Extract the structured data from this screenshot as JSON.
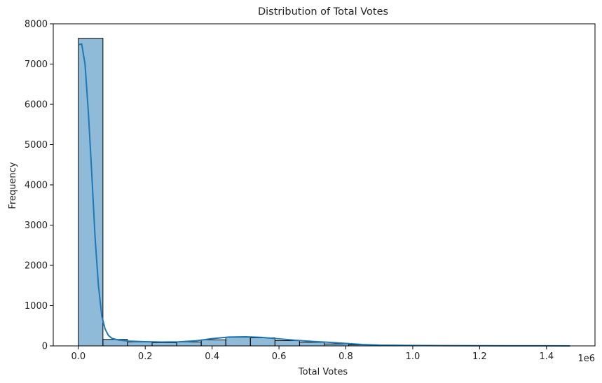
{
  "chart_data": {
    "type": "bar",
    "title": "Distribution of Total Votes",
    "xlabel": "Total Votes",
    "ylabel": "Frequency",
    "x_offset_label": "1e6",
    "xlim": [
      -0.075,
      1.545
    ],
    "ylim": [
      0,
      8000
    ],
    "xticks": [
      0.0,
      0.2,
      0.4,
      0.6,
      0.8,
      1.0,
      1.2,
      1.4
    ],
    "xtick_labels": [
      "0.0",
      "0.2",
      "0.4",
      "0.6",
      "0.8",
      "1.0",
      "1.2",
      "1.4"
    ],
    "yticks": [
      0,
      1000,
      2000,
      3000,
      4000,
      5000,
      6000,
      7000,
      8000
    ],
    "ytick_labels": [
      "0",
      "1000",
      "2000",
      "3000",
      "4000",
      "5000",
      "6000",
      "7000",
      "8000"
    ],
    "grid": false,
    "bin_width": 0.0735,
    "bin_starts": [
      0.0,
      0.0735,
      0.147,
      0.2205,
      0.294,
      0.3675,
      0.441,
      0.5145,
      0.588,
      0.6615,
      0.735,
      0.8085,
      0.882,
      0.9555,
      1.029,
      1.1025,
      1.176,
      1.2495,
      1.323,
      1.3965
    ],
    "values": [
      7640,
      160,
      100,
      80,
      100,
      150,
      215,
      200,
      130,
      90,
      50,
      25,
      15,
      10,
      8,
      6,
      4,
      3,
      2,
      2
    ],
    "kde": {
      "x": [
        0.0,
        0.01,
        0.02,
        0.03,
        0.04,
        0.05,
        0.06,
        0.07,
        0.08,
        0.09,
        0.1,
        0.12,
        0.15,
        0.2,
        0.25,
        0.3,
        0.35,
        0.4,
        0.45,
        0.5,
        0.55,
        0.6,
        0.65,
        0.7,
        0.75,
        0.8,
        0.85,
        0.9,
        1.0,
        1.1,
        1.2,
        1.3,
        1.4,
        1.47
      ],
      "y": [
        7480,
        7500,
        7000,
        5800,
        4300,
        2700,
        1500,
        750,
        420,
        260,
        190,
        145,
        120,
        105,
        95,
        100,
        125,
        180,
        220,
        225,
        210,
        175,
        140,
        110,
        90,
        60,
        35,
        20,
        10,
        6,
        4,
        3,
        2,
        1
      ]
    },
    "colors": {
      "bar_fill": "#1f77b4",
      "bar_fill_opacity": 0.5,
      "bar_edge": "#000000",
      "kde_line": "#1f77b4"
    }
  }
}
